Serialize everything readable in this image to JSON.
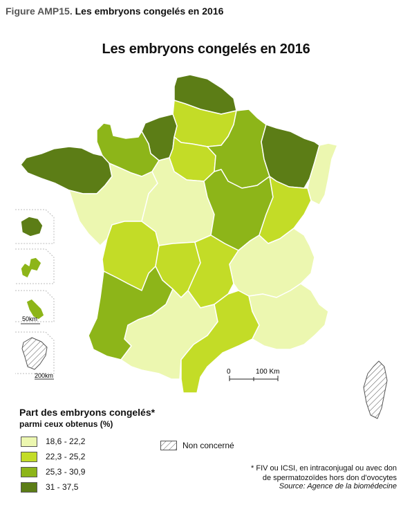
{
  "figure": {
    "prefix": "Figure AMP15.",
    "title": "Les embryons congelés en 2016"
  },
  "map_title": "Les embryons congelés en 2016",
  "colors": {
    "c1": "#ecf7b0",
    "c2": "#c3dc27",
    "c3": "#8db519",
    "c4": "#5c7d16",
    "border": "#ffffff",
    "hatch": "#555555"
  },
  "legend": {
    "title": "Part des embryons congelés*",
    "subtitle": "parmi ceux obtenus (%)",
    "classes": [
      {
        "label": "18,6 - 22,2",
        "color": "#ecf7b0"
      },
      {
        "label": "22,3 - 25,2",
        "color": "#c3dc27"
      },
      {
        "label": "25,3 - 30,9",
        "color": "#8db519"
      },
      {
        "label": "31 - 37,5",
        "color": "#5c7d16"
      }
    ],
    "not_concerned": "Non concerné"
  },
  "scale_bar": {
    "zero": "0",
    "label": "100 Km"
  },
  "inset_scales": {
    "small": "50km",
    "large": "200km"
  },
  "footnote": {
    "line1": "* FIV ou ICSI, en intraconjugal ou avec don",
    "line2": "de spermatozoïdes hors don d'ovocytes"
  },
  "source": "Source: Agence de la biomédecine",
  "regions": [
    {
      "name": "Nord-Pas-de-Calais",
      "class": 4
    },
    {
      "name": "Picardie",
      "class": 2
    },
    {
      "name": "Haute-Normandie",
      "class": 4
    },
    {
      "name": "Basse-Normandie",
      "class": 3
    },
    {
      "name": "Bretagne",
      "class": 4
    },
    {
      "name": "Île-de-France",
      "class": 2
    },
    {
      "name": "Champagne-Ardenne",
      "class": 3
    },
    {
      "name": "Lorraine",
      "class": 4
    },
    {
      "name": "Alsace",
      "class": 1
    },
    {
      "name": "Pays de la Loire",
      "class": 1
    },
    {
      "name": "Centre",
      "class": 1
    },
    {
      "name": "Bourgogne",
      "class": 3
    },
    {
      "name": "Franche-Comté",
      "class": 2
    },
    {
      "name": "Poitou-Charentes",
      "class": 2
    },
    {
      "name": "Limousin",
      "class": 2
    },
    {
      "name": "Auvergne",
      "class": 2
    },
    {
      "name": "Rhône-Alpes",
      "class": 1
    },
    {
      "name": "Aquitaine",
      "class": 3
    },
    {
      "name": "Midi-Pyrénées",
      "class": 1
    },
    {
      "name": "Languedoc-Roussillon",
      "class": 2
    },
    {
      "name": "Provence-Alpes-Côte d'Azur",
      "class": 1
    },
    {
      "name": "Corse",
      "class": 0
    },
    {
      "name": "La Réunion",
      "class": 4
    },
    {
      "name": "Guadeloupe",
      "class": 3
    },
    {
      "name": "Martinique",
      "class": 3
    },
    {
      "name": "Guyane",
      "class": 0
    }
  ]
}
